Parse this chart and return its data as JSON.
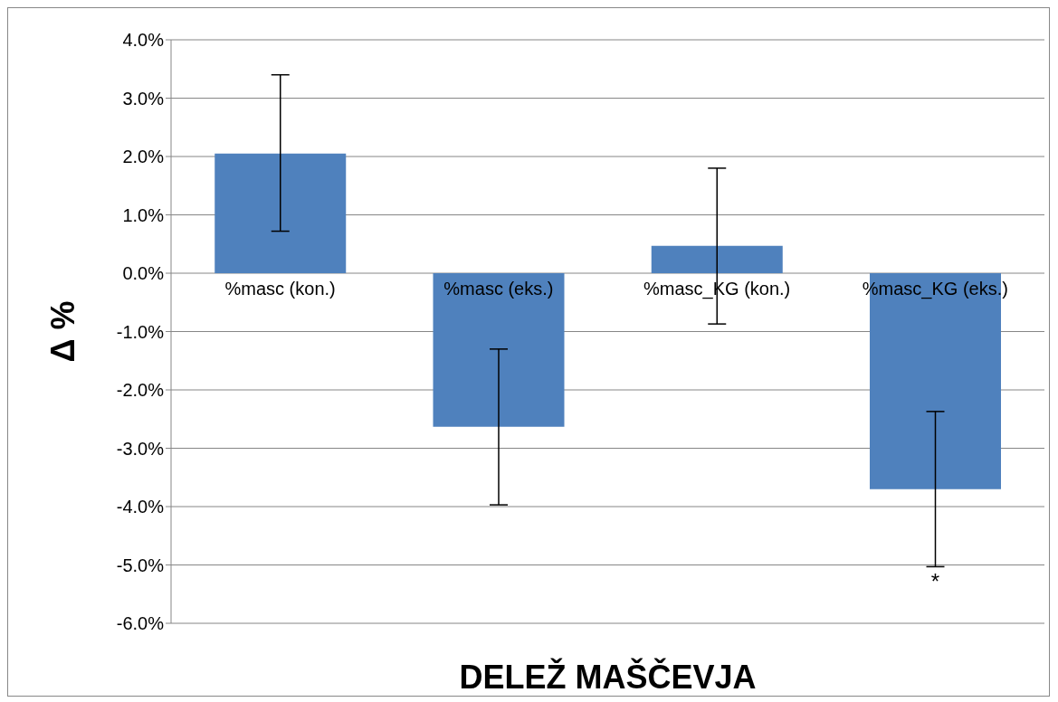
{
  "chart_data": {
    "type": "bar",
    "xlabel": "DELEŽ MAŠČEVJA",
    "ylabel": "Δ %",
    "categories": [
      "%masc (kon.)",
      "%masc (eks.)",
      "%masc_KG (kon.)",
      "%masc_KG (eks.)"
    ],
    "values": [
      2.05,
      -2.63,
      0.47,
      -3.7
    ],
    "errors": [
      [
        0.72,
        3.4
      ],
      [
        -3.97,
        -1.3
      ],
      [
        -0.87,
        1.8
      ],
      [
        -5.03,
        -2.37
      ]
    ],
    "color": "#4f81bd",
    "ylim": [
      -6,
      4
    ],
    "yticks": [
      {
        "value": -6,
        "label": "-6.0%"
      },
      {
        "value": -5,
        "label": "-5.0%"
      },
      {
        "value": -4,
        "label": "-4.0%"
      },
      {
        "value": -3,
        "label": "-3.0%"
      },
      {
        "value": -2,
        "label": "-2.0%"
      },
      {
        "value": -1,
        "label": "-1.0%"
      },
      {
        "value": 0,
        "label": "0.0%"
      },
      {
        "value": 1,
        "label": "1.0%"
      },
      {
        "value": 2,
        "label": "2.0%"
      },
      {
        "value": 3,
        "label": "3.0%"
      },
      {
        "value": 4,
        "label": "4.0%"
      }
    ],
    "grid": "y",
    "annotations": [
      {
        "text": "*",
        "x": "%masc_KG (eks.)",
        "y": -5.03
      }
    ]
  }
}
